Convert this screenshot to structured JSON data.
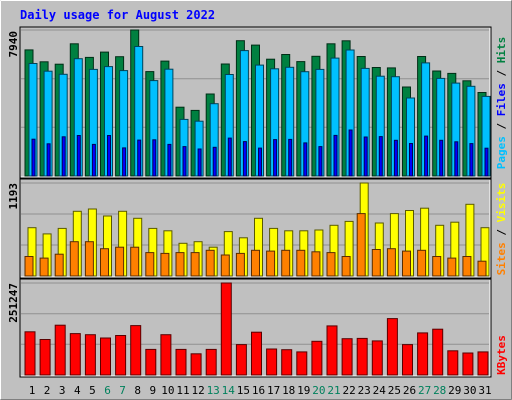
{
  "chart_data": [
    {
      "type": "bar",
      "title": "Daily usage for August 2022",
      "categories": [
        "1",
        "2",
        "3",
        "4",
        "5",
        "6",
        "7",
        "8",
        "9",
        "10",
        "11",
        "12",
        "13",
        "14",
        "15",
        "16",
        "17",
        "18",
        "19",
        "20",
        "21",
        "22",
        "23",
        "24",
        "25",
        "26",
        "27",
        "28",
        "29",
        "30",
        "31"
      ],
      "weekend_days": [
        "6",
        "7",
        "13",
        "14",
        "20",
        "21",
        "27",
        "28"
      ],
      "ymax_label": "7940",
      "ylim": [
        0,
        7940
      ],
      "ylabel_parts": [
        "Pages",
        "Files",
        "Hits"
      ],
      "series": [
        {
          "name": "Hits",
          "color": "#008040",
          "values": [
            6860,
            6210,
            6080,
            7190,
            6450,
            6740,
            6490,
            7940,
            5680,
            6250,
            3740,
            3570,
            4460,
            6090,
            7360,
            7120,
            6350,
            6610,
            6220,
            6510,
            7190,
            7350,
            6500,
            5900,
            5880,
            4840,
            6500,
            5710,
            5580,
            5180,
            4540
          ]
        },
        {
          "name": "Files",
          "color": "#00c0ff",
          "values": [
            6120,
            5700,
            5530,
            6380,
            5800,
            5950,
            5730,
            7040,
            5190,
            5810,
            3080,
            2980,
            3930,
            5520,
            6820,
            6030,
            5830,
            5910,
            5670,
            5800,
            6410,
            6850,
            5850,
            5430,
            5400,
            4240,
            6150,
            5310,
            5050,
            4880,
            4330
          ]
        },
        {
          "name": "Pages",
          "color": "#0000ff",
          "values": [
            2000,
            1750,
            2130,
            2200,
            1720,
            2200,
            1530,
            1950,
            1970,
            1720,
            1600,
            1470,
            1560,
            2060,
            1870,
            1520,
            1980,
            1990,
            1800,
            1600,
            2210,
            2500,
            2120,
            2140,
            1940,
            1770,
            2170,
            1940,
            1860,
            1760,
            1510
          ]
        }
      ]
    },
    {
      "type": "bar",
      "ymax_label": "1193",
      "ylim": [
        0,
        1193
      ],
      "ylabel_parts": [
        "Sites",
        "Visits"
      ],
      "series": [
        {
          "name": "Visits",
          "color": "#ffff00",
          "values": [
            620,
            540,
            610,
            830,
            860,
            770,
            830,
            740,
            610,
            580,
            420,
            440,
            370,
            570,
            490,
            740,
            610,
            580,
            580,
            590,
            650,
            700,
            1193,
            680,
            800,
            840,
            870,
            650,
            690,
            920,
            620
          ]
        },
        {
          "name": "Sites",
          "color": "#ff8000",
          "values": [
            250,
            230,
            280,
            440,
            440,
            350,
            370,
            370,
            300,
            290,
            300,
            300,
            330,
            270,
            290,
            330,
            320,
            330,
            330,
            310,
            300,
            250,
            800,
            340,
            350,
            320,
            330,
            250,
            230,
            250,
            190
          ]
        }
      ]
    },
    {
      "type": "bar",
      "ymax_label": "251247",
      "ylim": [
        0,
        251247
      ],
      "ylabel_parts": [
        "KBytes"
      ],
      "series": [
        {
          "name": "KBytes",
          "color": "#ff0000",
          "values": [
            118000,
            97000,
            136000,
            113000,
            110000,
            101000,
            108000,
            135000,
            70000,
            110000,
            70000,
            58000,
            70000,
            251247,
            83000,
            117000,
            71000,
            69000,
            63000,
            92000,
            134000,
            99000,
            100000,
            93000,
            154000,
            83000,
            115000,
            125000,
            66000,
            60000,
            63000
          ]
        }
      ]
    }
  ]
}
